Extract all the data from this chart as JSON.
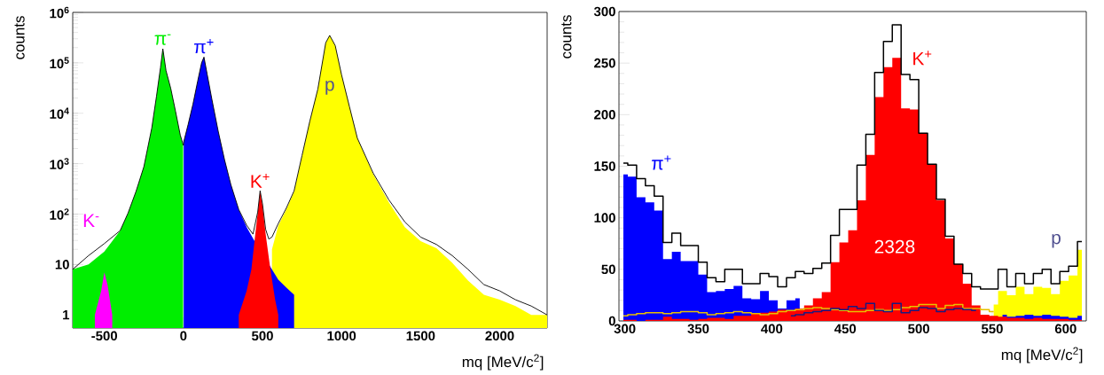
{
  "chart_data": [
    {
      "type": "area",
      "xlabel": "mq [MeV/c$^{2}$]",
      "ylabel": "counts",
      "log": "y",
      "xlim": [
        -700,
        2300
      ],
      "ylim": [
        0.55,
        1000000
      ],
      "xticks": [
        -500,
        0,
        500,
        1000,
        1500,
        2000
      ],
      "yticks": [
        1,
        10,
        {
          "value": 100,
          "label": "10$^{2}$"
        },
        {
          "value": 1000,
          "label": "10$^{3}$"
        },
        {
          "value": 10000,
          "label": "10$^{4}$"
        },
        {
          "value": 100000,
          "label": "10$^{5}$"
        },
        {
          "value": 1000000,
          "label": "10$^{6}$"
        }
      ],
      "series": [
        {
          "name": "π$^{-}$",
          "color": "#00ee00",
          "x": [
            -700,
            -600,
            -500,
            -400,
            -350,
            -300,
            -250,
            -200,
            -170,
            -145,
            -130,
            -110,
            -80,
            -50,
            -20,
            -2
          ],
          "values": [
            8,
            10,
            18,
            47,
            105,
            280,
            870,
            5100,
            22000,
            80000,
            190000,
            70000,
            31000,
            11000,
            3700,
            2300
          ]
        },
        {
          "name": "p",
          "color": "#ffff00",
          "x": [
            560,
            600,
            650,
            700,
            750,
            800,
            850,
            900,
            925,
            960,
            1000,
            1050,
            1100,
            1200,
            1300,
            1400,
            1500,
            1600,
            1700,
            1800,
            1900,
            2000,
            2100,
            2200,
            2300
          ],
          "values": [
            20,
            59,
            123,
            280,
            1400,
            7100,
            30000,
            250000,
            350000,
            220000,
            58000,
            13500,
            3200,
            620,
            170,
            55,
            29,
            21,
            10.8,
            4.8,
            2.5,
            2,
            1.5,
            1,
            1
          ]
        },
        {
          "name": "π$^{+}$",
          "color": "#0000ff",
          "x": [
            2,
            30,
            60,
            90,
            115,
            130,
            150,
            180,
            220,
            260,
            300,
            350,
            400,
            450,
            550,
            600,
            650,
            700
          ],
          "values": [
            2700,
            6000,
            15000,
            43000,
            100000,
            130000,
            60000,
            19000,
            4400,
            1200,
            385,
            123,
            55,
            29,
            9,
            5,
            3.5,
            2.5
          ]
        },
        {
          "name": "K$^{+}$",
          "color": "#ff0000",
          "x": [
            350,
            400,
            430,
            450,
            470,
            485,
            500,
            520,
            550,
            580,
            600
          ],
          "values": [
            1,
            3,
            8,
            30,
            105,
            280,
            150,
            40,
            8,
            2,
            1
          ]
        },
        {
          "name": "K$^{-}$",
          "color": "#ff00ff",
          "x": [
            -560,
            -520,
            -500,
            -480,
            -450
          ],
          "values": [
            1,
            3,
            7,
            4,
            1
          ]
        },
        {
          "type": "line",
          "color": "#000000",
          "x": [
            -700,
            -600,
            -500,
            -400,
            -350,
            -300,
            -250,
            -200,
            -170,
            -145,
            -130,
            -110,
            -80,
            -50,
            -20,
            0,
            2,
            30,
            60,
            90,
            115,
            130,
            150,
            180,
            220,
            260,
            300,
            350,
            400,
            440,
            470,
            485,
            500,
            520,
            540,
            560,
            600,
            650,
            700,
            750,
            800,
            850,
            900,
            925,
            960,
            1000,
            1050,
            1100,
            1200,
            1300,
            1400,
            1500,
            1600,
            1700,
            1800,
            1900,
            2000,
            2100,
            2200,
            2300
          ],
          "values": [
            8,
            15,
            26,
            47,
            105,
            280,
            870,
            5100,
            22000,
            80000,
            190000,
            70000,
            31000,
            11000,
            3700,
            2300,
            2700,
            6000,
            15000,
            43000,
            100000,
            130000,
            60000,
            19000,
            4400,
            1200,
            385,
            123,
            60,
            40,
            110,
            290,
            160,
            50,
            32,
            35,
            65,
            130,
            290,
            1450,
            7100,
            30000,
            250000,
            350000,
            220000,
            58000,
            13500,
            3200,
            650,
            190,
            70,
            35,
            25,
            15,
            8,
            4,
            3,
            2,
            1.5,
            1
          ]
        }
      ]
    },
    {
      "type": "step",
      "xlabel": "mq [MeV/c$^{2}$]",
      "ylabel": "counts",
      "xlim": [
        296,
        614
      ],
      "ylim": [
        0,
        300
      ],
      "xticks": [
        300,
        350,
        400,
        450,
        500,
        550,
        600
      ],
      "yticks": [
        0,
        50,
        100,
        150,
        200,
        250,
        300
      ],
      "x": [
        299,
        305,
        311,
        317,
        323,
        329,
        335,
        341,
        347,
        353,
        359,
        365,
        371,
        377,
        383,
        389,
        395,
        401,
        407,
        413,
        419,
        425,
        431,
        437,
        443,
        449,
        455,
        461,
        467,
        473,
        479,
        485,
        491,
        497,
        503,
        509,
        515,
        521,
        527,
        533,
        539,
        545,
        551,
        557,
        563,
        569,
        575,
        581,
        587,
        593,
        599,
        605,
        611
      ],
      "annotations": [
        "2328"
      ],
      "series": [
        {
          "type": "area",
          "name": "p",
          "color": "#ffff00",
          "values": [
            null,
            null,
            null,
            null,
            null,
            null,
            null,
            null,
            null,
            null,
            null,
            null,
            null,
            null,
            null,
            null,
            null,
            null,
            null,
            null,
            null,
            null,
            null,
            null,
            null,
            null,
            null,
            null,
            null,
            null,
            null,
            null,
            null,
            null,
            null,
            null,
            null,
            null,
            null,
            null,
            null,
            null,
            16,
            29,
            25,
            33,
            26,
            33,
            32,
            26,
            39,
            44,
            69
          ]
        },
        {
          "type": "area",
          "name": "π$^{+}$",
          "color": "#0000ff",
          "values": [
            142,
            140,
            120,
            115,
            107,
            60,
            67,
            58,
            58,
            45,
            28,
            29,
            31,
            34,
            22,
            21,
            29,
            20,
            12,
            20,
            22,
            null,
            null,
            null,
            null,
            null,
            null,
            null,
            null,
            null,
            null,
            null,
            null,
            null,
            null,
            null,
            null,
            null,
            null,
            null,
            null,
            null,
            null,
            6,
            4,
            5,
            6,
            5,
            6,
            5,
            4,
            3,
            5
          ]
        },
        {
          "type": "area",
          "name": "K$^{+}$",
          "color": "#ff0000",
          "values": [
            1,
            1,
            0,
            1,
            1,
            4,
            2,
            2,
            1,
            2,
            3,
            3,
            2,
            5,
            5,
            7,
            8,
            9,
            11,
            10,
            12,
            15,
            22,
            28,
            57,
            76,
            88,
            117,
            161,
            217,
            246,
            255,
            206,
            205,
            182,
            152,
            117,
            80,
            55,
            36,
            15,
            6,
            5,
            4,
            3,
            3,
            2,
            3,
            2,
            2,
            2,
            1,
            1
          ]
        },
        {
          "color": "#000000",
          "values": [
            153,
            151,
            138,
            131,
            121,
            76,
            85,
            73,
            73,
            57,
            42,
            38,
            50,
            50,
            36,
            36,
            46,
            43,
            33,
            42,
            48,
            46,
            51,
            56,
            83,
            108,
            108,
            151,
            181,
            241,
            271,
            287,
            239,
            234,
            182,
            152,
            118,
            82,
            55,
            46,
            33,
            31,
            31,
            50,
            33,
            46,
            36,
            46,
            50,
            36,
            48,
            53,
            77
          ]
        },
        {
          "color": "#e8c000",
          "values": [
            5,
            6,
            7,
            8,
            8,
            7,
            8,
            9,
            9,
            8,
            6,
            7,
            8,
            9,
            8,
            7,
            6,
            7,
            9,
            10,
            11,
            12,
            13,
            12,
            11,
            10,
            9,
            9,
            10,
            11,
            10,
            11,
            13,
            14,
            16,
            16,
            12,
            15,
            16,
            12,
            12,
            11,
            9,
            null,
            null,
            null,
            null,
            null,
            null,
            null,
            null,
            null,
            null
          ]
        },
        {
          "color": "#1a1a80",
          "values": [
            null,
            null,
            null,
            null,
            null,
            null,
            null,
            null,
            null,
            null,
            null,
            null,
            null,
            null,
            null,
            null,
            null,
            null,
            null,
            5,
            6,
            8,
            9,
            10,
            12,
            11,
            14,
            12,
            17,
            10,
            9,
            17,
            8,
            10,
            13,
            12,
            9,
            11,
            12,
            11,
            10,
            null,
            null,
            null,
            null,
            null,
            null,
            null,
            null,
            null,
            null,
            null,
            null
          ]
        }
      ]
    }
  ]
}
